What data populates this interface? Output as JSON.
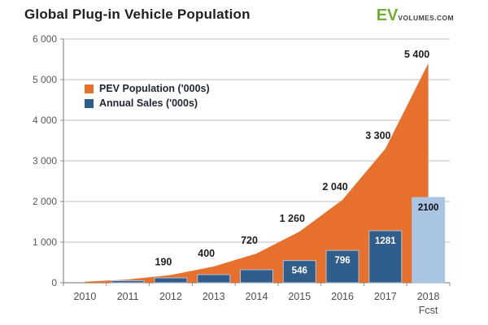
{
  "header": {
    "title": "Global Plug-in Vehicle Population",
    "logo": {
      "ev": "EV",
      "suffix": "VOLUMES.COM"
    }
  },
  "legend": {
    "items": [
      {
        "label": "PEV Population ('000s)",
        "color": "#e7702c"
      },
      {
        "label": "Annual Sales ('000s)",
        "color": "#2f5e8c"
      }
    ]
  },
  "colors": {
    "area": "#e7702c",
    "bar": "#2f5e8c",
    "bar_forecast": "#a9c5e3",
    "bar_border": "#b3c2d4",
    "grid": "#bfbfbf",
    "axis": "#8c8c8c",
    "tick_text": "#595959",
    "data_label": "#1f1f1f"
  },
  "chart_data": {
    "type": "area+bar combo",
    "title": "Global Plug-in Vehicle Population",
    "categories": [
      "2010",
      "2011",
      "2012",
      "2013",
      "2014",
      "2015",
      "2016",
      "2017",
      "2018"
    ],
    "x_sublabel": {
      "index": 8,
      "text": "Fcst"
    },
    "series": [
      {
        "name": "PEV Population ('000s)",
        "type": "area",
        "color": "#e7702c",
        "values": [
          25,
          80,
          190,
          400,
          720,
          1260,
          2040,
          3300,
          5400
        ],
        "labels": [
          "",
          "",
          "190",
          "400",
          "720",
          "1 260",
          "2 040",
          "3 300",
          "5 400"
        ]
      },
      {
        "name": "Annual Sales ('000s)",
        "type": "bar",
        "color": "#2f5e8c",
        "values": [
          null,
          50,
          120,
          200,
          320,
          546,
          796,
          1281,
          2100
        ],
        "labels": [
          "",
          "",
          "",
          "",
          "",
          "546",
          "796",
          "1281",
          "2100"
        ],
        "bar_colors": [
          null,
          "#2f5e8c",
          "#2f5e8c",
          "#2f5e8c",
          "#2f5e8c",
          "#2f5e8c",
          "#2f5e8c",
          "#2f5e8c",
          "#a9c5e3"
        ],
        "label_colors": [
          "",
          "",
          "",
          "",
          "",
          "#ffffff",
          "#ffffff",
          "#ffffff",
          "#111111"
        ]
      }
    ],
    "ylim": [
      0,
      6000
    ],
    "ytick_step": 1000,
    "ytick_labels": [
      "0",
      "1 000",
      "2 000",
      "3 000",
      "4 000",
      "5 000",
      "6 000"
    ],
    "grid": true,
    "legend_position": "inside-top-left"
  }
}
